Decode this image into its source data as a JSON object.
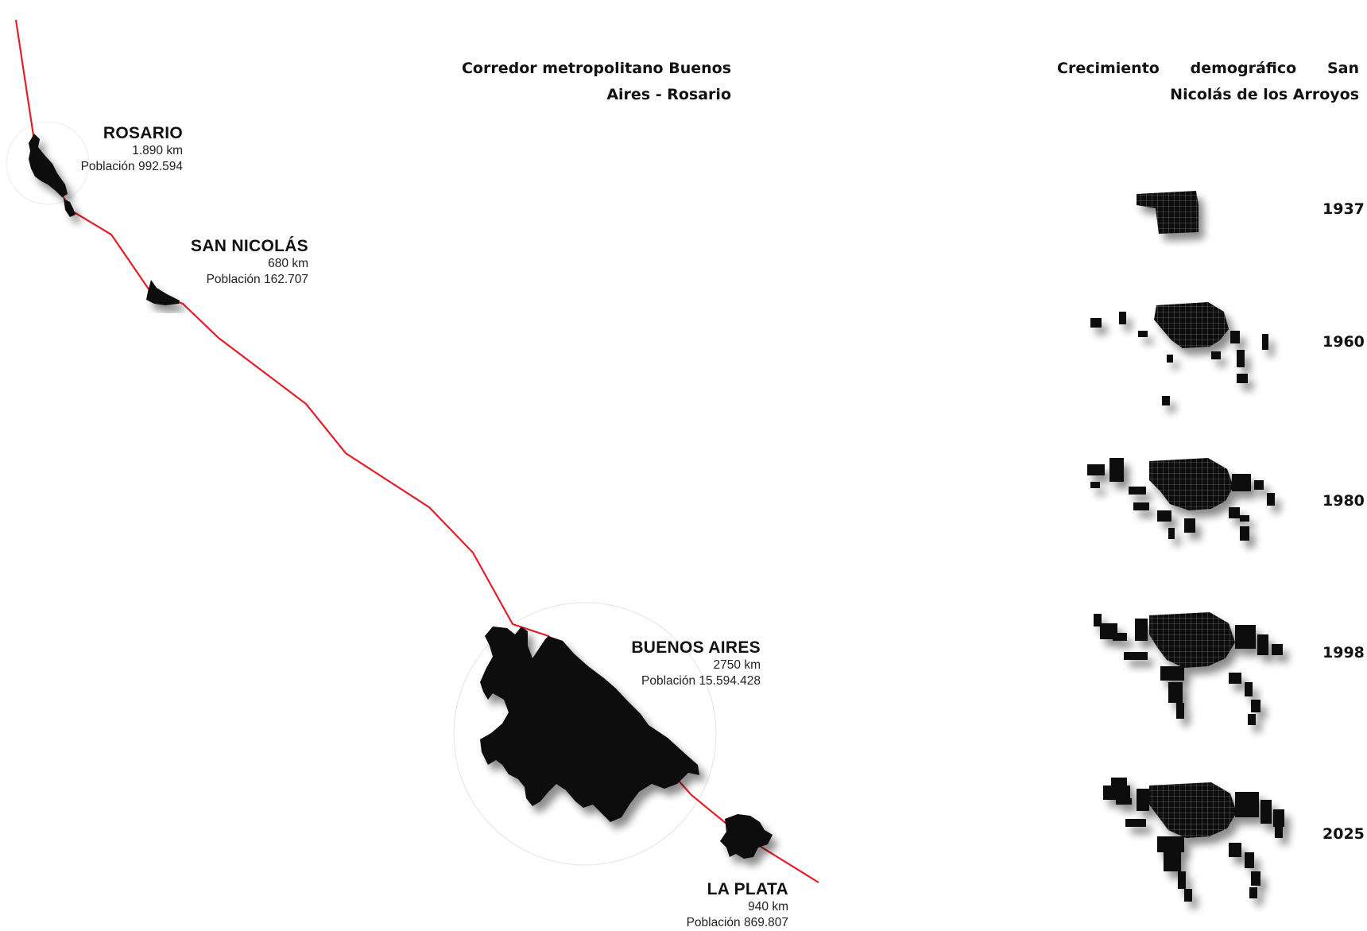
{
  "titles": {
    "corridor": "Corredor metropolitano Buenos Aires - Rosario",
    "growth": "Crecimiento demográfico San Nicolás de los Arroyos"
  },
  "cities": [
    {
      "name": "ROSARIO",
      "area": "1.890 km",
      "population": "Población 992.594"
    },
    {
      "name": "SAN NICOLÁS",
      "area": "680 km",
      "population": "Población 162.707"
    },
    {
      "name": "BUENOS AIRES",
      "area": "2750 km",
      "population": "Población 15.594.428"
    },
    {
      "name": "LA PLATA",
      "area": "940 km",
      "population": "Población 869.807"
    }
  ],
  "growth_years": [
    "1937",
    "1960",
    "1980",
    "1998",
    "2025"
  ],
  "colors": {
    "route": "#e0202a",
    "urban": "#0a0a0a",
    "background": "#ffffff"
  }
}
